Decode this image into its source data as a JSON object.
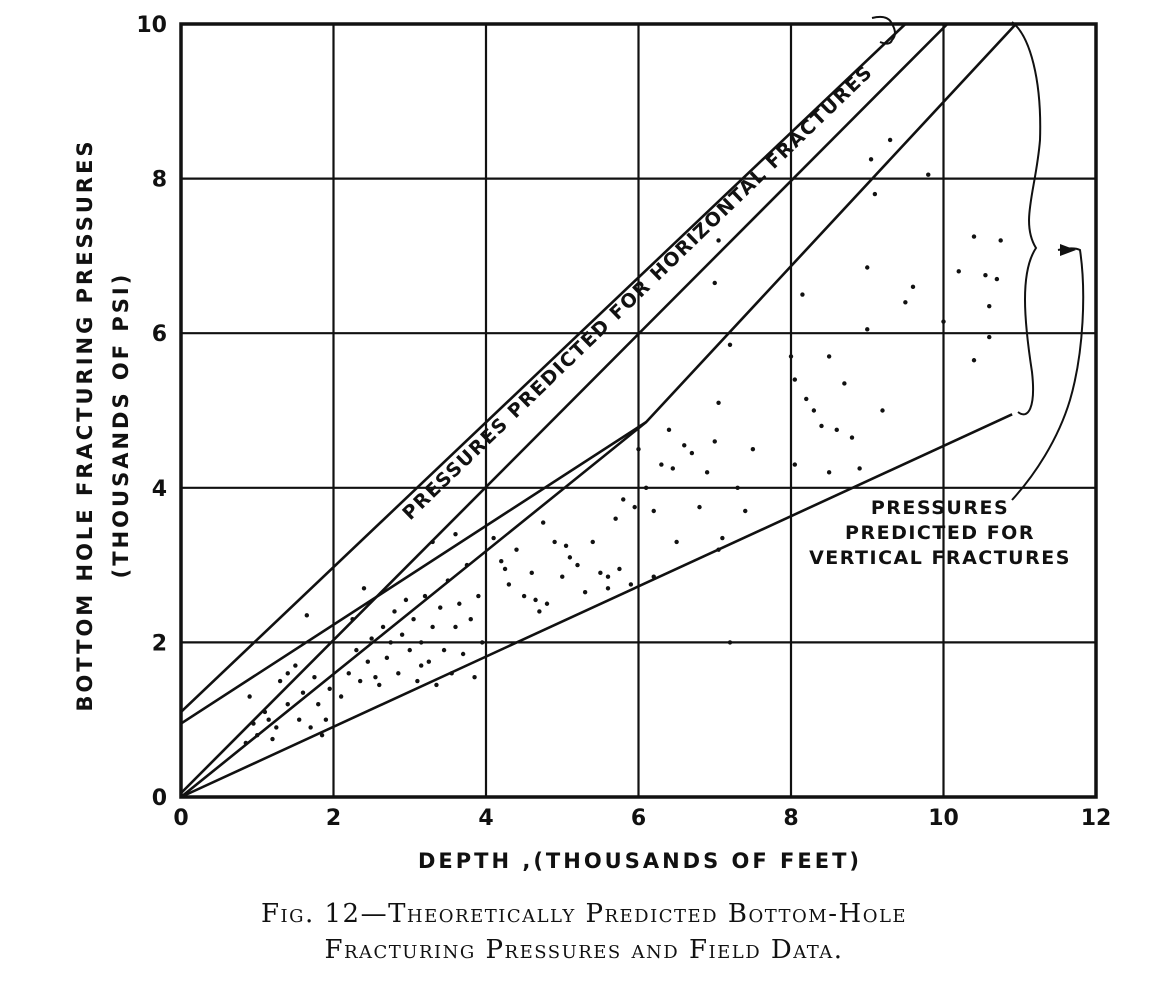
{
  "chart_data": {
    "type": "scatter",
    "xlabel": "DEPTH ,(THOUSANDS OF FEET)",
    "ylabel_lines": [
      "BOTTOM HOLE FRACTURING PRESSURES",
      "(THOUSANDS OF PSI)"
    ],
    "xlim": [
      0,
      12
    ],
    "ylim": [
      0,
      10
    ],
    "x_ticks": [
      0,
      2,
      4,
      6,
      8,
      10,
      12
    ],
    "y_ticks": [
      0,
      2,
      4,
      6,
      8,
      10
    ],
    "grid": true,
    "annotations": {
      "horizontal": "PRESSURES PREDICTED FOR HORIZONTAL FRACTURES",
      "vertical_lines": [
        "PRESSURES",
        "PREDICTED FOR",
        "VERTICAL FRACTURES"
      ]
    },
    "series": [
      {
        "role": "horizontal-fracture-upper-bound",
        "x": [
          0,
          9.5
        ],
        "y": [
          1.1,
          10
        ]
      },
      {
        "role": "horizontal-fracture-lower-bound",
        "x": [
          0,
          10.05
        ],
        "y": [
          0.05,
          10
        ]
      },
      {
        "role": "vertical-fracture-upper-bound",
        "x": [
          0,
          6.1,
          10.95
        ],
        "y": [
          0,
          4.85,
          10
        ]
      },
      {
        "role": "vertical-fracture-middle-bound",
        "x": [
          0,
          6.1
        ],
        "y": [
          0.95,
          4.85
        ]
      },
      {
        "role": "vertical-fracture-lower-bound",
        "x": [
          0,
          10.9
        ],
        "y": [
          0,
          4.95
        ]
      },
      {
        "name": "Field data",
        "points": [
          [
            0.9,
            1.3
          ],
          [
            1.0,
            0.8
          ],
          [
            1.1,
            1.1
          ],
          [
            1.2,
            0.75
          ],
          [
            1.25,
            0.9
          ],
          [
            1.3,
            1.5
          ],
          [
            1.4,
            1.2
          ],
          [
            1.5,
            1.7
          ],
          [
            1.55,
            1.0
          ],
          [
            1.6,
            1.35
          ],
          [
            1.7,
            0.9
          ],
          [
            1.75,
            1.55
          ],
          [
            1.8,
            1.2
          ],
          [
            1.9,
            1.0
          ],
          [
            1.95,
            1.4
          ],
          [
            1.65,
            2.35
          ],
          [
            1.4,
            1.6
          ],
          [
            1.15,
            1.0
          ],
          [
            0.95,
            0.95
          ],
          [
            1.85,
            0.8
          ],
          [
            2.1,
            1.3
          ],
          [
            2.2,
            1.6
          ],
          [
            2.3,
            1.9
          ],
          [
            2.35,
            1.5
          ],
          [
            2.45,
            1.75
          ],
          [
            2.5,
            2.05
          ],
          [
            2.6,
            1.45
          ],
          [
            2.65,
            2.2
          ],
          [
            2.7,
            1.8
          ],
          [
            2.8,
            2.4
          ],
          [
            2.85,
            1.6
          ],
          [
            2.9,
            2.1
          ],
          [
            3.0,
            1.9
          ],
          [
            3.05,
            2.3
          ],
          [
            3.1,
            1.5
          ],
          [
            3.15,
            2.0
          ],
          [
            3.2,
            2.6
          ],
          [
            3.25,
            1.75
          ],
          [
            3.3,
            2.2
          ],
          [
            3.35,
            1.45
          ],
          [
            3.4,
            2.45
          ],
          [
            3.45,
            1.9
          ],
          [
            3.5,
            2.8
          ],
          [
            3.55,
            1.6
          ],
          [
            3.6,
            2.2
          ],
          [
            3.65,
            2.5
          ],
          [
            3.7,
            1.85
          ],
          [
            3.75,
            3.0
          ],
          [
            3.8,
            2.3
          ],
          [
            3.85,
            1.55
          ],
          [
            3.9,
            2.6
          ],
          [
            3.95,
            2.0
          ],
          [
            3.3,
            3.3
          ],
          [
            3.6,
            3.4
          ],
          [
            2.4,
            2.7
          ],
          [
            2.75,
            2.0
          ],
          [
            2.95,
            2.55
          ],
          [
            3.15,
            1.7
          ],
          [
            2.55,
            1.55
          ],
          [
            2.25,
            2.3
          ],
          [
            4.1,
            3.35
          ],
          [
            4.2,
            3.05
          ],
          [
            4.3,
            2.75
          ],
          [
            4.4,
            3.2
          ],
          [
            4.5,
            2.6
          ],
          [
            4.6,
            2.9
          ],
          [
            4.7,
            2.4
          ],
          [
            4.75,
            3.55
          ],
          [
            4.8,
            2.5
          ],
          [
            4.9,
            3.3
          ],
          [
            5.0,
            2.85
          ],
          [
            5.1,
            3.1
          ],
          [
            5.2,
            3.0
          ],
          [
            5.3,
            2.65
          ],
          [
            5.4,
            3.3
          ],
          [
            5.5,
            2.9
          ],
          [
            5.6,
            2.7
          ],
          [
            5.7,
            3.6
          ],
          [
            5.75,
            2.95
          ],
          [
            5.8,
            3.85
          ],
          [
            5.9,
            2.75
          ],
          [
            5.95,
            3.75
          ],
          [
            5.6,
            2.85
          ],
          [
            4.25,
            2.95
          ],
          [
            5.05,
            3.25
          ],
          [
            4.65,
            2.55
          ],
          [
            6.0,
            4.5
          ],
          [
            6.1,
            4.0
          ],
          [
            6.2,
            3.7
          ],
          [
            6.3,
            4.3
          ],
          [
            6.4,
            4.75
          ],
          [
            6.5,
            3.3
          ],
          [
            6.6,
            4.55
          ],
          [
            6.7,
            4.45
          ],
          [
            6.8,
            3.75
          ],
          [
            6.9,
            4.2
          ],
          [
            7.0,
            4.6
          ],
          [
            7.05,
            5.1
          ],
          [
            7.1,
            3.35
          ],
          [
            7.2,
            5.85
          ],
          [
            7.3,
            4.0
          ],
          [
            7.4,
            3.7
          ],
          [
            7.5,
            4.5
          ],
          [
            7.0,
            6.65
          ],
          [
            6.2,
            2.85
          ],
          [
            6.45,
            4.25
          ],
          [
            8.0,
            5.7
          ],
          [
            8.05,
            4.3
          ],
          [
            8.2,
            5.15
          ],
          [
            8.3,
            5.0
          ],
          [
            8.4,
            4.8
          ],
          [
            8.5,
            5.7
          ],
          [
            8.6,
            4.75
          ],
          [
            8.7,
            5.35
          ],
          [
            8.8,
            4.65
          ],
          [
            8.9,
            4.25
          ],
          [
            9.0,
            6.85
          ],
          [
            9.1,
            7.8
          ],
          [
            9.2,
            5.0
          ],
          [
            9.3,
            8.5
          ],
          [
            9.5,
            6.4
          ],
          [
            9.6,
            6.6
          ],
          [
            9.8,
            8.05
          ],
          [
            10.0,
            6.15
          ],
          [
            10.2,
            6.8
          ],
          [
            10.4,
            5.65
          ],
          [
            10.4,
            7.25
          ],
          [
            10.55,
            6.75
          ],
          [
            10.6,
            6.35
          ],
          [
            10.6,
            5.95
          ],
          [
            10.75,
            7.2
          ],
          [
            8.15,
            6.5
          ],
          [
            8.05,
            5.4
          ],
          [
            9.05,
            8.25
          ],
          [
            8.5,
            4.2
          ],
          [
            7.05,
            3.2
          ],
          [
            0.85,
            0.7
          ],
          [
            7.2,
            2.0
          ],
          [
            7.05,
            7.2
          ],
          [
            10.7,
            6.7
          ],
          [
            9.0,
            6.05
          ]
        ]
      }
    ]
  },
  "caption_lines": [
    "Fig. 12—Theoretically Predicted Bottom-Hole",
    "Fracturing Pressures and Field Data."
  ]
}
